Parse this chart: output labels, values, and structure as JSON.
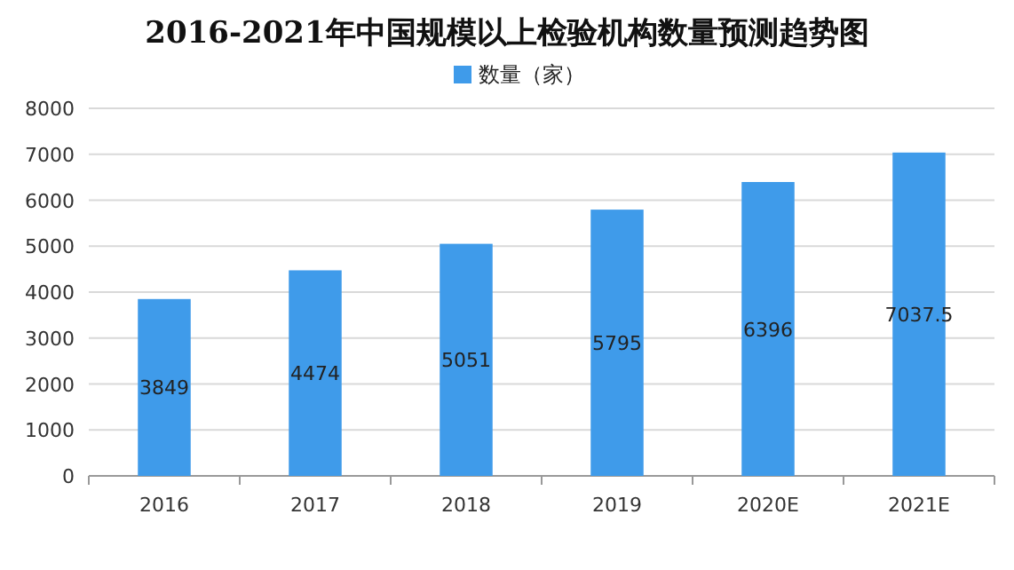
{
  "chart_data": {
    "type": "bar",
    "title": "2016-2021年中国规模以上检验机构数量预测趋势图",
    "categories": [
      "2016",
      "2017",
      "2018",
      "2019",
      "2020E",
      "2021E"
    ],
    "series": [
      {
        "name": "数量（家）",
        "color": "#3f9bea",
        "values": [
          3849,
          4474,
          5051,
          5795,
          6396,
          7037.5
        ]
      }
    ],
    "ylim": [
      0,
      8000
    ],
    "yticks": [
      0,
      1000,
      2000,
      3000,
      4000,
      5000,
      6000,
      7000,
      8000
    ],
    "grid": "y",
    "legend": "top",
    "data_labels": true
  }
}
